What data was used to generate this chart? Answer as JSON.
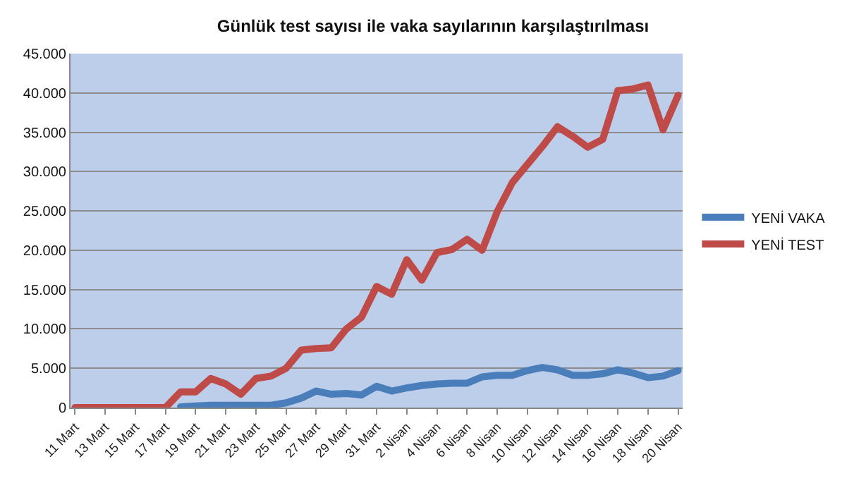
{
  "chart_data": {
    "type": "line",
    "title": "Günlük test sayısı ile vaka sayılarının karşılaştırılması",
    "categories": [
      "11 Mart",
      null,
      "13 Mart",
      null,
      "15 Mart",
      null,
      "17 Mart",
      null,
      "19 Mart",
      null,
      "21 Mart",
      null,
      "23 Mart",
      null,
      "25 Mart",
      null,
      "27 Mart",
      null,
      "29 Mart",
      null,
      "31 Mart",
      null,
      "2 Nisan",
      null,
      "4 Nisan",
      null,
      "6 Nisan",
      null,
      "8 Nisan",
      null,
      "10 Nisan",
      null,
      "12 Nisan",
      null,
      "14 Nisan",
      null,
      "16 Nisan",
      null,
      "18 Nisan",
      null,
      "20 Nisan"
    ],
    "series": [
      {
        "name": "YENİ VAKA",
        "color": "#4a7ebb",
        "values": [
          null,
          null,
          null,
          null,
          null,
          null,
          null,
          100,
          200,
          300,
          300,
          300,
          300,
          300,
          600,
          1200,
          2100,
          1700,
          1800,
          1600,
          2700,
          2100,
          2500,
          2800,
          3000,
          3100,
          3100,
          3900,
          4100,
          4100,
          4700,
          5100,
          4800,
          4100,
          4100,
          4300,
          4800,
          4400,
          3800,
          4000,
          4700
        ]
      },
      {
        "name": "YENİ TEST",
        "color": "#be4b48",
        "values": [
          0,
          0,
          0,
          0,
          0,
          0,
          0,
          2000,
          2000,
          3700,
          3000,
          1700,
          3700,
          4000,
          5000,
          7300,
          7500,
          7600,
          10000,
          11500,
          15400,
          14400,
          18800,
          16200,
          19700,
          20100,
          21400,
          20000,
          24900,
          28600,
          30900,
          33200,
          35700,
          34500,
          33100,
          34100,
          40300,
          40500,
          41000,
          35300,
          39700
        ]
      }
    ],
    "ylim": [
      0,
      45000
    ],
    "yticks": [
      {
        "value": 0,
        "label": "0"
      },
      {
        "value": 5000,
        "label": "5.000"
      },
      {
        "value": 10000,
        "label": "10.000"
      },
      {
        "value": 15000,
        "label": "15.000"
      },
      {
        "value": 20000,
        "label": "20.000"
      },
      {
        "value": 25000,
        "label": "25.000"
      },
      {
        "value": 30000,
        "label": "30.000"
      },
      {
        "value": 35000,
        "label": "35.000"
      },
      {
        "value": 40000,
        "label": "40.000"
      },
      {
        "value": 45000,
        "label": "45.000"
      }
    ],
    "grid": "y",
    "legend": "right",
    "marker": "none",
    "line_style": "solid"
  }
}
